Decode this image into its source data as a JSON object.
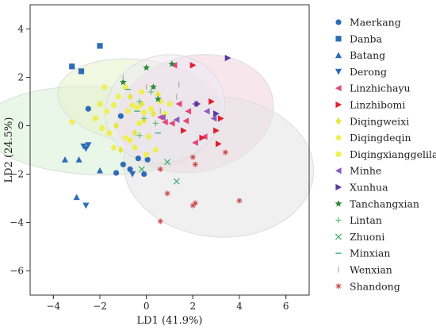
{
  "chart_data": {
    "type": "scatter",
    "xlabel": "LD1  (41.9%)",
    "ylabel": "LD2  (24.5%)",
    "xlim": [
      -5,
      7
    ],
    "ylim": [
      -7,
      5
    ],
    "xticks": [
      -4,
      -2,
      0,
      2,
      4,
      6
    ],
    "yticks": [
      -6,
      -4,
      -2,
      0,
      2,
      4
    ],
    "grid": false,
    "legend_position": "right",
    "series": [
      {
        "name": "Maerkang",
        "marker": "circle",
        "color": "#2e6db5",
        "points": [
          [
            -2.5,
            0.7
          ],
          [
            -1.1,
            0.4
          ],
          [
            -1.0,
            -1.6
          ],
          [
            -1.3,
            -1.95
          ],
          [
            -0.7,
            -1.8
          ],
          [
            -0.35,
            -1.35
          ],
          [
            -0.1,
            -2.0
          ],
          [
            0.05,
            -1.4
          ]
        ]
      },
      {
        "name": "Danba",
        "marker": "square",
        "color": "#2e6db5",
        "points": [
          [
            -3.2,
            2.45
          ],
          [
            -2.8,
            2.25
          ],
          [
            -2.0,
            3.3
          ]
        ]
      },
      {
        "name": "Batang",
        "marker": "triangle-up",
        "color": "#2e6db5",
        "points": [
          [
            -3.5,
            -1.4
          ],
          [
            -2.9,
            -1.4
          ],
          [
            -2.0,
            -1.85
          ],
          [
            -3.0,
            -2.95
          ]
        ]
      },
      {
        "name": "Derong",
        "marker": "triangle-down",
        "color": "#2e6db5",
        "points": [
          [
            -2.7,
            -0.85
          ],
          [
            -2.6,
            -0.95
          ],
          [
            -2.5,
            -0.8
          ],
          [
            -0.6,
            -2.0
          ],
          [
            -2.6,
            -3.3
          ]
        ]
      },
      {
        "name": "Linzhichayu",
        "marker": "triangle-left",
        "color": "#e5457a",
        "points": [
          [
            0.6,
            0.35
          ],
          [
            0.8,
            0.15
          ],
          [
            1.1,
            0.1
          ],
          [
            1.4,
            0.9
          ],
          [
            1.7,
            0.2
          ],
          [
            1.8,
            0.6
          ],
          [
            2.1,
            -0.7
          ],
          [
            2.5,
            -0.45
          ],
          [
            1.2,
            2.5
          ]
        ]
      },
      {
        "name": "Linzhibomi",
        "marker": "triangle-right",
        "color": "#e02030",
        "points": [
          [
            2.0,
            2.5
          ],
          [
            2.8,
            1.0
          ],
          [
            3.2,
            0.3
          ],
          [
            3.0,
            -0.2
          ],
          [
            2.4,
            -0.5
          ],
          [
            3.1,
            -0.75
          ],
          [
            1.6,
            -0.2
          ]
        ]
      },
      {
        "name": "Diqingweixi",
        "marker": "diamond",
        "color": "#e6e640",
        "points": [
          [
            -1.3,
            0.0
          ],
          [
            -0.7,
            1.2
          ],
          [
            -0.2,
            0.9
          ],
          [
            0.3,
            0.5
          ],
          [
            0.5,
            1.3
          ],
          [
            -0.5,
            -0.3
          ],
          [
            -1.1,
            -1.0
          ]
        ]
      },
      {
        "name": "Diqingdeqin",
        "marker": "pentagon",
        "color": "#f0ee5a",
        "points": [
          [
            -3.2,
            0.15
          ],
          [
            -1.8,
            1.6
          ],
          [
            -1.7,
            0.6
          ],
          [
            -0.9,
            -0.5
          ],
          [
            0.4,
            -1.0
          ],
          [
            -0.1,
            0.2
          ],
          [
            -1.4,
            -0.9
          ],
          [
            0.8,
            0.5
          ]
        ]
      },
      {
        "name": "Diqingxianggelila",
        "marker": "circle",
        "color": "#eeee55",
        "points": [
          [
            -2.2,
            0.3
          ],
          [
            -1.6,
            -0.3
          ],
          [
            -1.4,
            0.85
          ],
          [
            -1.2,
            1.2
          ],
          [
            -0.9,
            1.6
          ],
          [
            -0.8,
            0.6
          ],
          [
            -0.6,
            0.85
          ],
          [
            -0.4,
            0.75
          ],
          [
            -0.3,
            0.1
          ],
          [
            -0.1,
            0.55
          ],
          [
            0.1,
            -0.45
          ],
          [
            0.2,
            0.7
          ],
          [
            0.6,
            1.0
          ],
          [
            -1.9,
            -0.1
          ],
          [
            -0.5,
            -0.9
          ],
          [
            0.0,
            -1.2
          ],
          [
            -2.0,
            0.9
          ],
          [
            -0.2,
            1.4
          ],
          [
            -0.7,
            -0.6
          ],
          [
            1.0,
            0.9
          ]
        ]
      },
      {
        "name": "Minhe",
        "marker": "triangle-left",
        "color": "#8a5cc0",
        "points": [
          [
            2.1,
            0.9
          ],
          [
            2.6,
            0.6
          ],
          [
            2.9,
            0.3
          ],
          [
            1.3,
            0.25
          ],
          [
            0.7,
            0.35
          ]
        ]
      },
      {
        "name": "Xunhua",
        "marker": "triangle-right",
        "color": "#5a3aa0",
        "points": [
          [
            3.5,
            2.8
          ],
          [
            2.2,
            0.9
          ],
          [
            3.0,
            0.5
          ]
        ]
      },
      {
        "name": "Tanchangxian",
        "marker": "star",
        "color": "#2a8a3a",
        "points": [
          [
            0.0,
            2.4
          ],
          [
            1.1,
            2.55
          ],
          [
            0.3,
            1.6
          ],
          [
            -1.0,
            1.8
          ],
          [
            0.5,
            1.1
          ]
        ]
      },
      {
        "name": "Lintan",
        "marker": "plus",
        "color": "#5cbf7a",
        "points": [
          [
            -0.3,
            1.0
          ],
          [
            0.2,
            1.4
          ],
          [
            -0.1,
            0.3
          ],
          [
            0.4,
            0.1
          ],
          [
            -0.3,
            -0.4
          ]
        ]
      },
      {
        "name": "Zhuoni",
        "marker": "x",
        "color": "#3aaa70",
        "points": [
          [
            -0.2,
            -1.8
          ],
          [
            1.3,
            -2.3
          ],
          [
            0.9,
            -1.5
          ]
        ]
      },
      {
        "name": "Minxian",
        "marker": "hline",
        "color": "#2fa56d",
        "points": [
          [
            -0.8,
            1.5
          ],
          [
            0.5,
            -0.3
          ],
          [
            -0.4,
            0.6
          ]
        ]
      },
      {
        "name": "Wenxian",
        "marker": "vline",
        "color": "#a0b0a0",
        "points": [
          [
            -1.0,
            2.0
          ],
          [
            0.0,
            1.6
          ],
          [
            1.4,
            1.7
          ],
          [
            0.6,
            0.6
          ],
          [
            1.3,
            1.2
          ]
        ]
      },
      {
        "name": "Shandong",
        "marker": "asterisk",
        "color": "#c84a4a",
        "points": [
          [
            0.6,
            -1.8
          ],
          [
            0.9,
            -2.8
          ],
          [
            2.0,
            -1.3
          ],
          [
            2.1,
            -1.6
          ],
          [
            3.4,
            -1.1
          ],
          [
            2.0,
            -3.3
          ],
          [
            2.1,
            -3.2
          ],
          [
            4.0,
            -3.1
          ],
          [
            0.6,
            -3.95
          ]
        ]
      }
    ],
    "ellipses": [
      {
        "cx": -2.2,
        "cy": -0.2,
        "rx": 1.9,
        "ry": 4.7,
        "angle": 88,
        "fill": "#d7f0d7"
      },
      {
        "cx": -0.3,
        "cy": 1.0,
        "rx": 1.8,
        "ry": 3.4,
        "angle": 83,
        "fill": "#e6f3c8"
      },
      {
        "cx": 2.1,
        "cy": 0.5,
        "rx": 3.4,
        "ry": 2.4,
        "angle": 12,
        "fill": "#f3d2df"
      },
      {
        "cx": 3.1,
        "cy": -1.7,
        "rx": 4.1,
        "ry": 2.9,
        "angle": -5,
        "fill": "#e6e3e3"
      },
      {
        "cx": 0.8,
        "cy": 0.7,
        "rx": 2.6,
        "ry": 2.2,
        "angle": 20,
        "fill": "#ede9f4"
      }
    ]
  }
}
